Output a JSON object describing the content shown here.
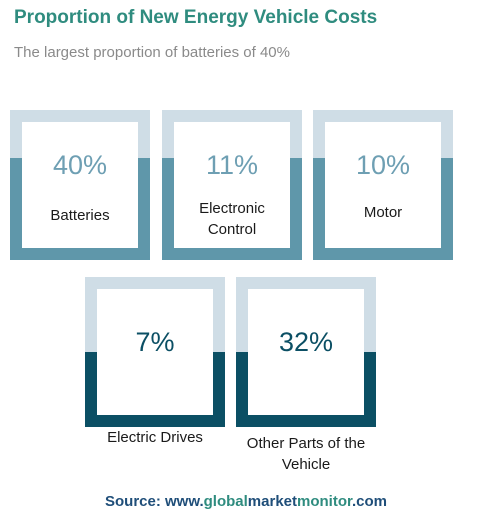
{
  "header": {
    "title": "Proportion of New Energy Vehicle Costs",
    "subtitle": "The largest proportion of batteries of 40%"
  },
  "colors": {
    "frame_light": "#cfdde6",
    "row1_fill": "#5f97aa",
    "row2_fill": "#0b4f64",
    "row1_text": "#6e9fb3",
    "row2_text": "#0b4f64",
    "title": "#2f8c7f",
    "source": "#1f4e79"
  },
  "chart_data": {
    "type": "table",
    "title": "Proportion of New Energy Vehicle Costs",
    "subtitle": "The largest proportion of batteries of 40%",
    "categories": [
      "Batteries",
      "Electronic Control",
      "Motor",
      "Electric Drives",
      "Other Parts of the Vehicle"
    ],
    "values": [
      40,
      11,
      10,
      7,
      32
    ],
    "unit": "%",
    "items": [
      {
        "pct": "40%",
        "label": "Batteries",
        "value": 40
      },
      {
        "pct": "11%",
        "label": "Electronic\nControl",
        "value": 11
      },
      {
        "pct": "10%",
        "label": "Motor",
        "value": 10
      },
      {
        "pct": "7%",
        "label": "Electric Drives",
        "value": 7
      },
      {
        "pct": "32%",
        "label": "Other Parts of the\nVehicle",
        "value": 32
      }
    ]
  },
  "source": {
    "prefix": "Source: www.",
    "part1": "global",
    "part2": "market",
    "part3": "monitor",
    "suffix": ".com"
  }
}
